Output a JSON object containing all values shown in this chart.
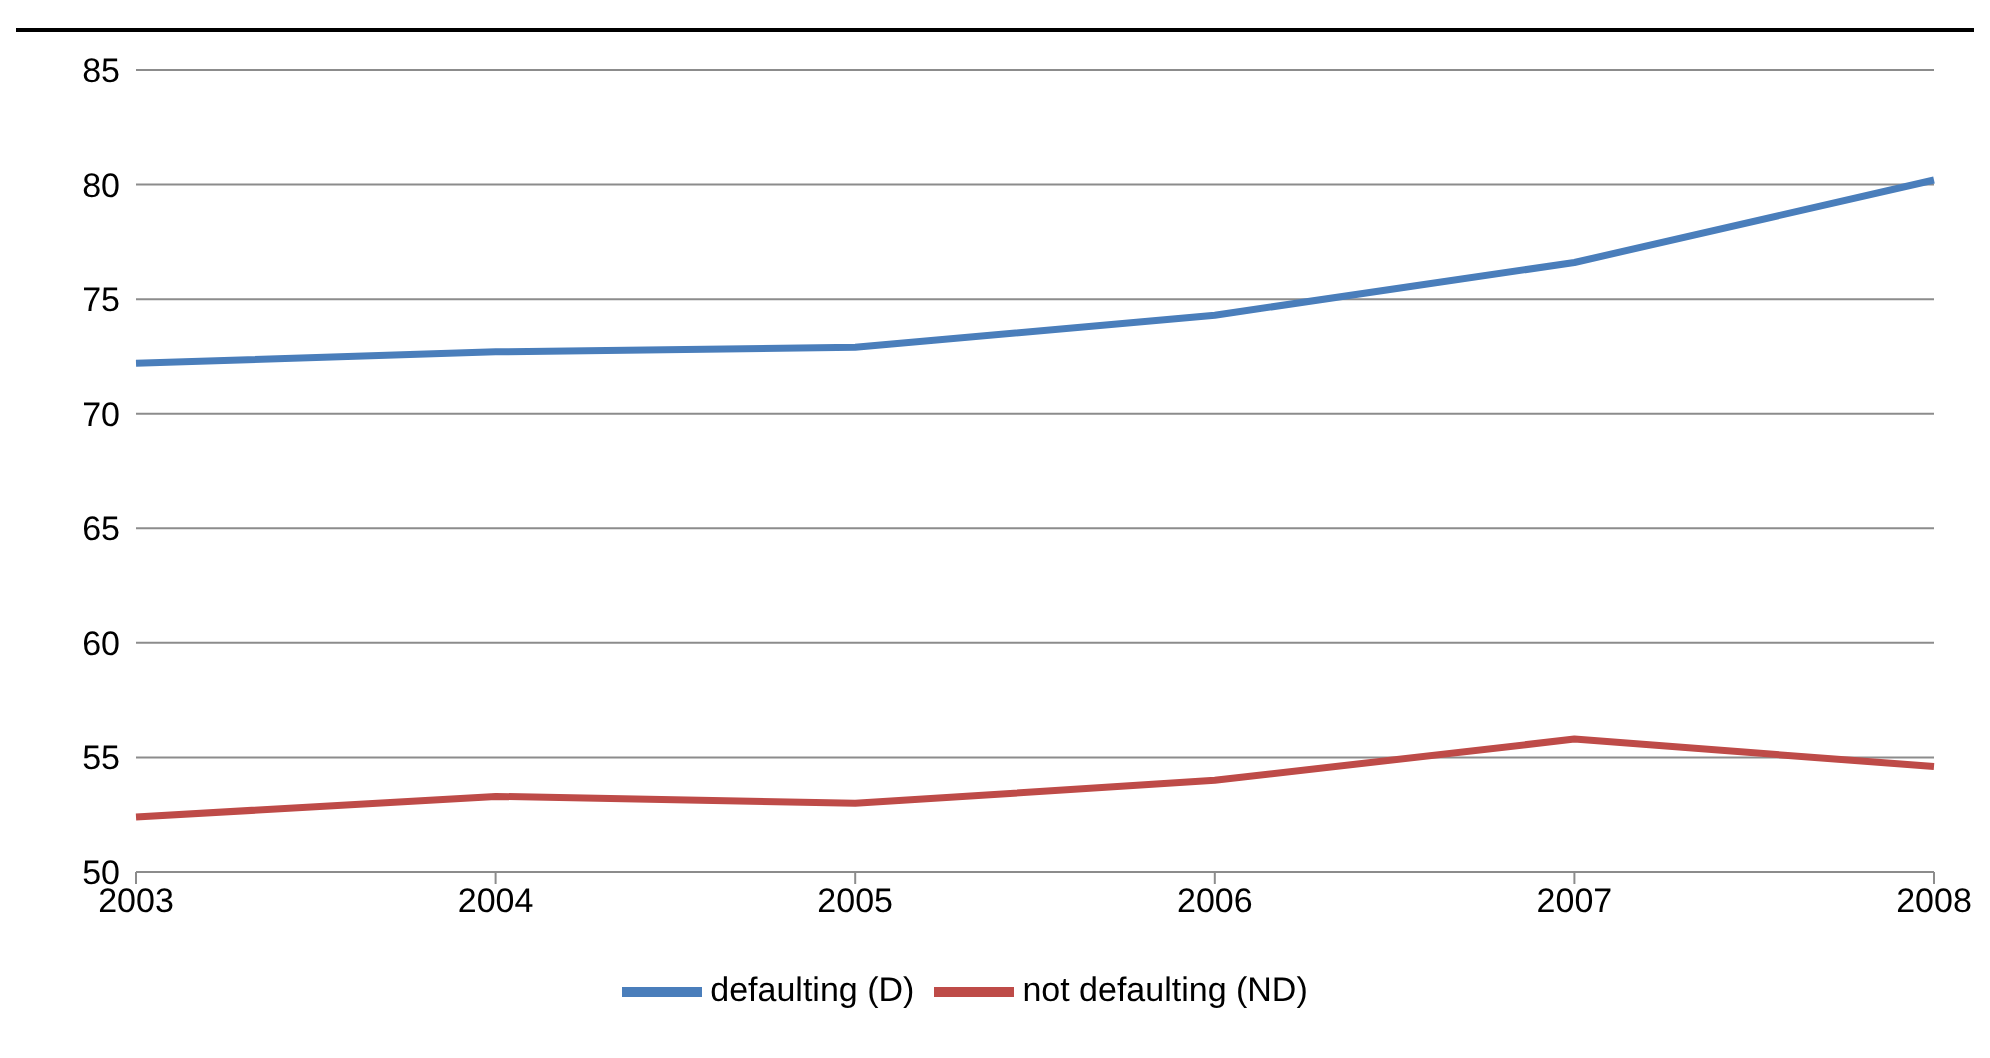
{
  "chart_data": {
    "type": "line",
    "categories": [
      "2003",
      "2004",
      "2005",
      "2006",
      "2007",
      "2008"
    ],
    "series": [
      {
        "name": "defaulting (D)",
        "color": "#4a7ebb",
        "values": [
          72.2,
          72.7,
          72.9,
          74.3,
          76.6,
          80.2
        ]
      },
      {
        "name": "not defaulting (ND)",
        "color": "#be4b48",
        "values": [
          52.4,
          53.3,
          53.0,
          54.0,
          55.8,
          54.6
        ]
      }
    ],
    "ylim": [
      50,
      85
    ],
    "yticks": [
      50,
      55,
      60,
      65,
      70,
      75,
      80,
      85
    ],
    "grid": "y",
    "legend": "bottom",
    "marker": "none",
    "line_style": "solid"
  }
}
